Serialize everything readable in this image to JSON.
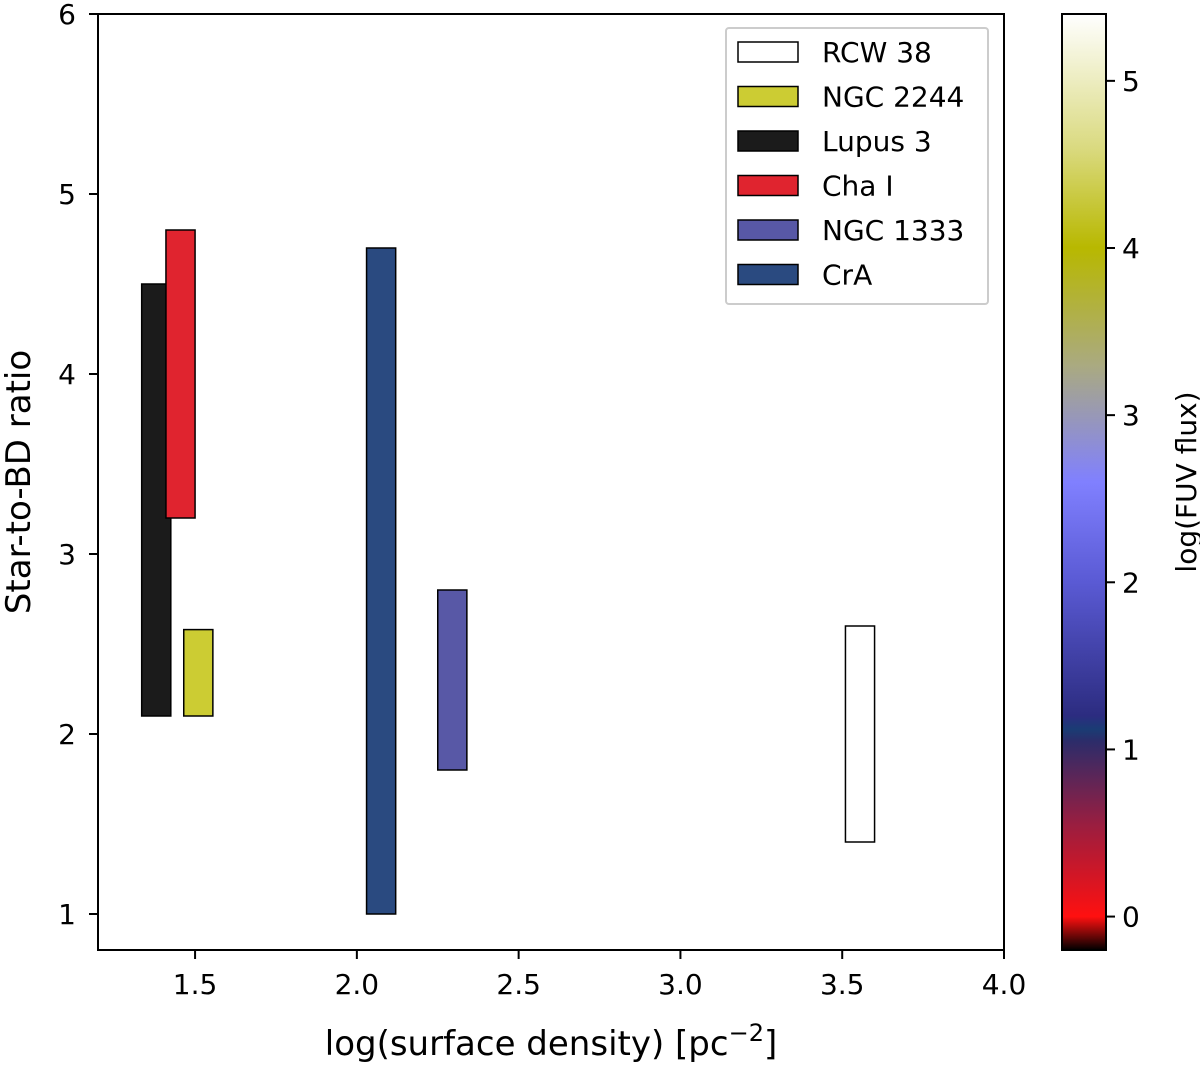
{
  "chart_data": {
    "type": "bar",
    "subtype": "floating-range",
    "xlabel": "log(surface density) [pc",
    "xlabel_sup": "−2",
    "xlabel_end": "]",
    "ylabel": "Star-to-BD ratio",
    "xlim": [
      1.2,
      4.0
    ],
    "ylim": [
      0.8,
      6.0
    ],
    "xticks": [
      1.5,
      2.0,
      2.5,
      3.0,
      3.5,
      4.0
    ],
    "xtick_labels": [
      "1.5",
      "2.0",
      "2.5",
      "3.0",
      "3.5",
      "4.0"
    ],
    "yticks": [
      1,
      2,
      3,
      4,
      5,
      6
    ],
    "ytick_labels": [
      "1",
      "2",
      "3",
      "4",
      "5",
      "6"
    ],
    "legend_position": "top-right",
    "series": [
      {
        "name": "RCW 38",
        "x": 3.555,
        "width": 0.09,
        "low": 1.4,
        "high": 2.6,
        "color": "#ffffff"
      },
      {
        "name": "NGC 2244",
        "x": 1.51,
        "width": 0.09,
        "low": 2.1,
        "high": 2.58,
        "color": "#cccc33"
      },
      {
        "name": "Lupus 3",
        "x": 1.38,
        "width": 0.09,
        "low": 2.1,
        "high": 4.5,
        "color": "#1b1b1b"
      },
      {
        "name": "Cha I",
        "x": 1.455,
        "width": 0.09,
        "low": 3.2,
        "high": 4.8,
        "color": "#e0242f"
      },
      {
        "name": "NGC 1333",
        "x": 2.295,
        "width": 0.09,
        "low": 1.8,
        "high": 2.8,
        "color": "#5858a6"
      },
      {
        "name": "CrA",
        "x": 2.075,
        "width": 0.09,
        "low": 1.0,
        "high": 4.7,
        "color": "#2a4a80"
      }
    ],
    "colorbar": {
      "label": "log(FUV flux)",
      "range": [
        -0.2,
        5.4
      ],
      "ticks": [
        0,
        1,
        2,
        3,
        4,
        5
      ],
      "tick_labels": [
        "0",
        "1",
        "2",
        "3",
        "4",
        "5"
      ],
      "stops": [
        {
          "value": -0.2,
          "color": "#000000"
        },
        {
          "value": 0.0,
          "color": "#ff1010"
        },
        {
          "value": 0.55,
          "color": "#9a1e40"
        },
        {
          "value": 1.05,
          "color": "#2c2c6a"
        },
        {
          "value": 1.12,
          "color": "#1a3c74"
        },
        {
          "value": 1.2,
          "color": "#2c2c80"
        },
        {
          "value": 2.0,
          "color": "#5a5ad4"
        },
        {
          "value": 2.6,
          "color": "#8080ff"
        },
        {
          "value": 3.3,
          "color": "#aaaa80"
        },
        {
          "value": 4.0,
          "color": "#b8b800"
        },
        {
          "value": 4.6,
          "color": "#dada80"
        },
        {
          "value": 5.4,
          "color": "#ffffff"
        }
      ]
    }
  }
}
